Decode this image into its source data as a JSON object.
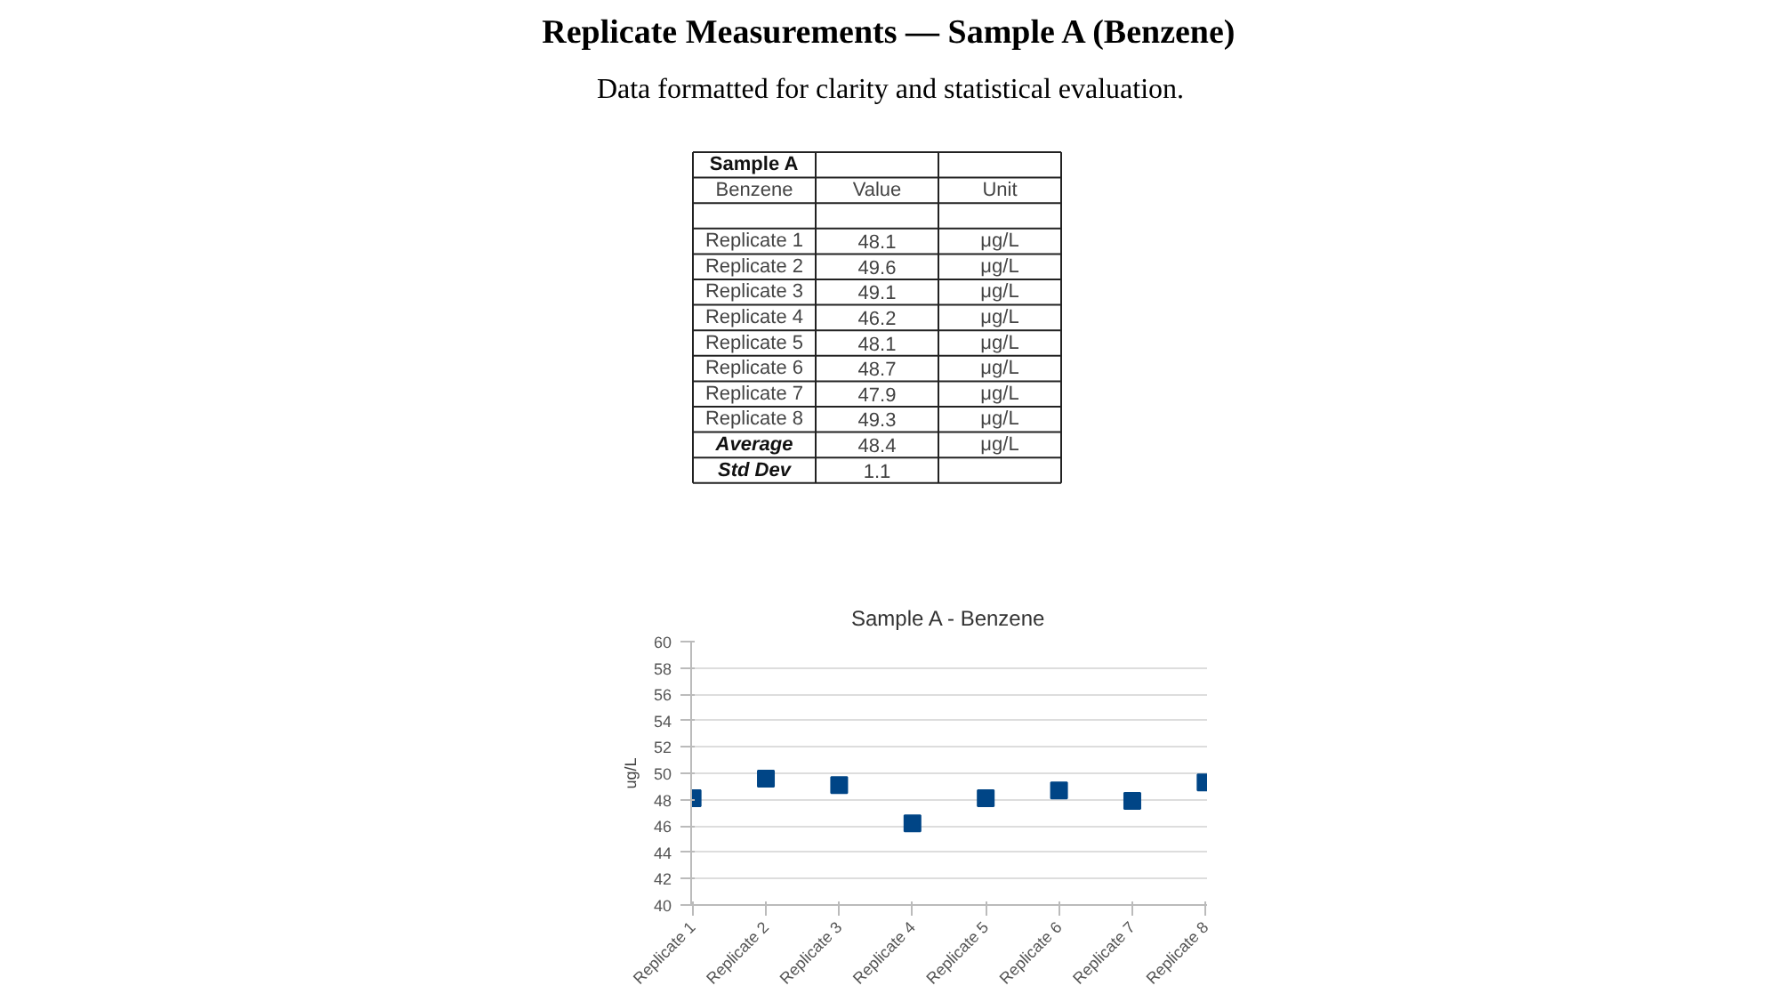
{
  "chart_data": {
    "type": "scatter",
    "title": "Replicate Measurements — Sample A (Benzene)",
    "subtitle": "Data formatted for clarity and statistical evaluation.",
    "ylabel": "ug/L",
    "categories": [
      "Replicate 1",
      "Replicate 2",
      "Replicate 3",
      "Replicate 4",
      "Replicate 5",
      "Replicate 6",
      "Replicate 7",
      "Replicate 8"
    ],
    "series": [
      {
        "color": "#004586",
        "values": [
          48.1,
          49.6,
          49.1,
          46.2,
          48.1,
          48.7,
          47.9,
          49.3
        ]
      }
    ],
    "value_labels": [
      "48.1",
      "49.6",
      "49.1",
      "46.2",
      "48.1",
      "48.7",
      "47.9",
      "49.3"
    ],
    "annotations": [
      "Sample A - Benzene",
      "Sample A",
      "Benzene",
      "Value",
      "Unit",
      "μg/L",
      "Average",
      "48.4",
      "Std Dev",
      "1.1"
    ],
    "ylim": [
      40,
      60
    ],
    "yticks": [
      40,
      42,
      44,
      46,
      48,
      50,
      52,
      54,
      56,
      58,
      60
    ],
    "grid": "y",
    "marker": "square"
  }
}
